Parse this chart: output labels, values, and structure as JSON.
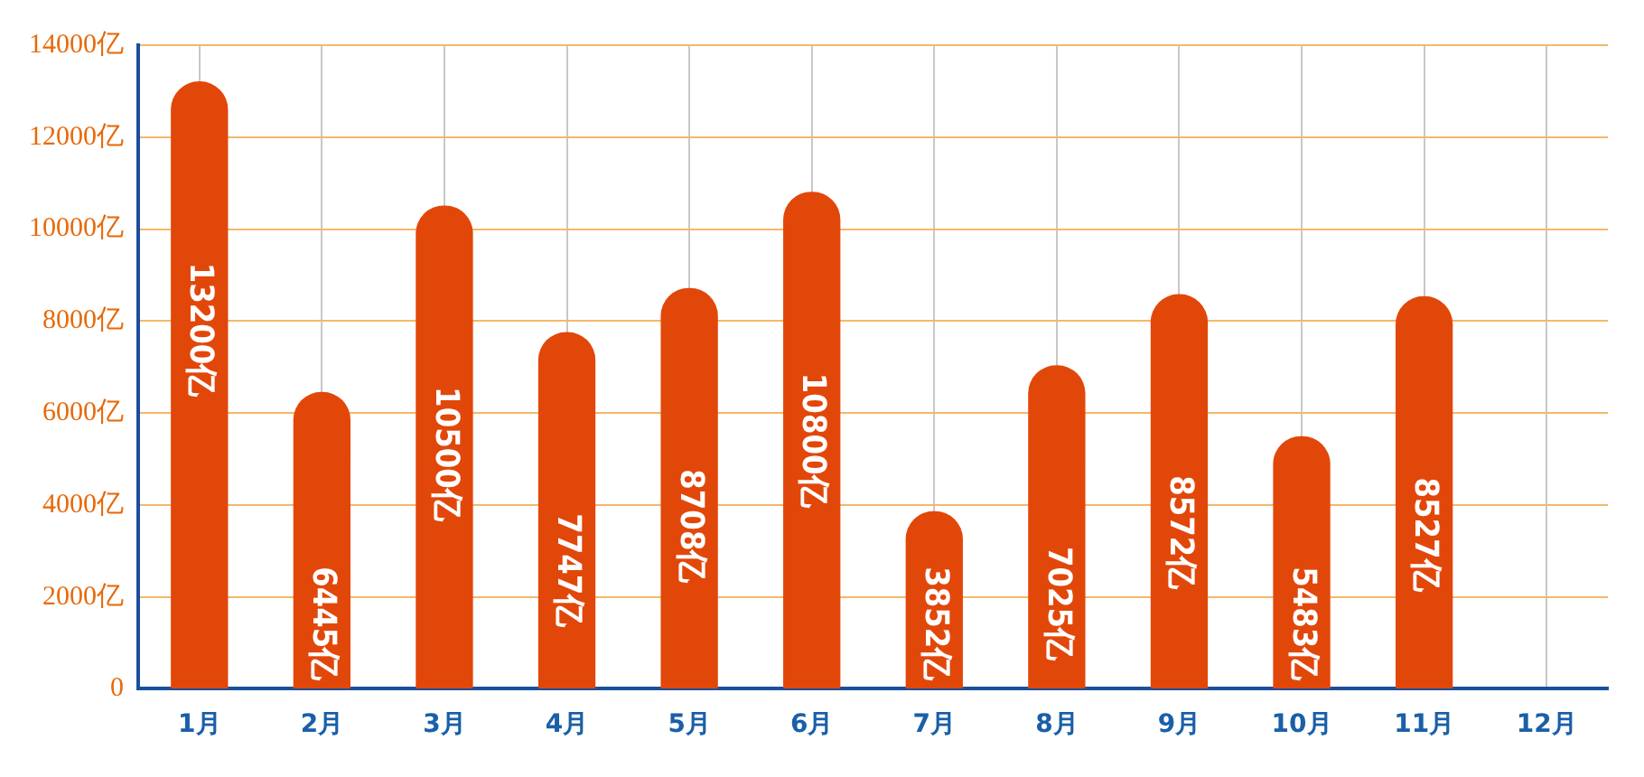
{
  "chart_data": {
    "type": "bar",
    "categories": [
      "1月",
      "2月",
      "3月",
      "4月",
      "5月",
      "6月",
      "7月",
      "8月",
      "9月",
      "10月",
      "11月",
      "12月"
    ],
    "values": [
      13200,
      6445,
      10500,
      7747,
      8708,
      10800,
      3852,
      7025,
      8572,
      5483,
      8527,
      null
    ],
    "value_labels": [
      "13200亿",
      "6445亿",
      "10500亿",
      "7747亿",
      "8708亿",
      "10800亿",
      "3852亿",
      "7025亿",
      "8572亿",
      "5483亿",
      "8527亿",
      null
    ],
    "color": "#e2470a",
    "ylim": [
      0,
      14000
    ],
    "yticks": [
      0,
      {
        "value": 2000,
        "label": "2000亿"
      },
      {
        "value": 4000,
        "label": "4000亿"
      },
      {
        "value": 6000,
        "label": "6000亿"
      },
      {
        "value": 8000,
        "label": "8000亿"
      },
      {
        "value": 10000,
        "label": "10000亿"
      },
      {
        "value": 12000,
        "label": "12000亿"
      },
      {
        "value": 14000,
        "label": "14000亿"
      }
    ],
    "grid": true
  }
}
